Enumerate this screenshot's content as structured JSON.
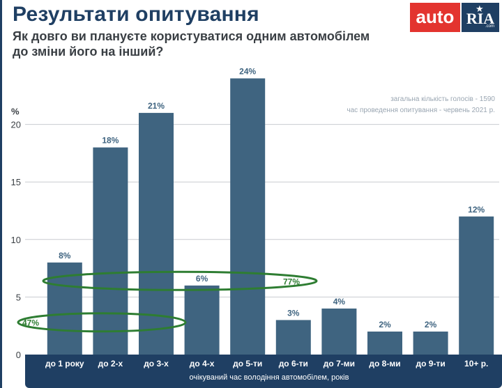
{
  "header": {
    "title": "Результати опитування",
    "subtitle_line1": "Як довго ви плануєте користуватися одним автомобілем",
    "subtitle_line2": "до зміни його на інший?"
  },
  "logo": {
    "auto": "auto",
    "ria": "RIA",
    "com": ".com"
  },
  "notes": {
    "votes": "загальна кількість голосів - 1590",
    "period": "час проведення опитування - червень 2021 р."
  },
  "colors": {
    "bar": "#3f6480",
    "axis_band": "#1f3f63",
    "ellipse": "#2e7d32",
    "title": "#1f3f63"
  },
  "chart_data": {
    "type": "bar",
    "title": "Результати опитування",
    "ylabel": "%",
    "xlabel": "очікуваний час володіння автомобілем, років",
    "ylim": [
      0,
      25
    ],
    "yticks": [
      0,
      5,
      10,
      15,
      20
    ],
    "grid": true,
    "categories": [
      "до 1 року",
      "до 2-х",
      "до 3-х",
      "до 4-х",
      "до 5-ти",
      "до 6-ти",
      "до 7-ми",
      "до 8-ми",
      "до 9-ти",
      "10+ р."
    ],
    "values": [
      8,
      18,
      21,
      6,
      24,
      3,
      4,
      2,
      2,
      12
    ],
    "value_labels": [
      "8%",
      "18%",
      "21%",
      "6%",
      "24%",
      "3%",
      "4%",
      "2%",
      "2%",
      "12%"
    ],
    "annotations": [
      {
        "label": "47%",
        "groups": [
          "до 1 року",
          "до 2-х",
          "до 3-х"
        ]
      },
      {
        "label": "77%",
        "groups": [
          "до 1 року",
          "до 2-х",
          "до 3-х",
          "до 4-х",
          "до 5-ти"
        ]
      }
    ]
  }
}
